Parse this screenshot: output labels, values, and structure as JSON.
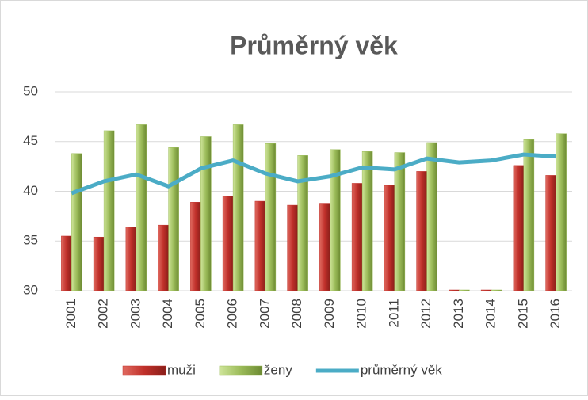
{
  "chart_data": {
    "type": "bar_line",
    "title": "Průměrný věk",
    "categories": [
      "2001",
      "2002",
      "2003",
      "2004",
      "2005",
      "2006",
      "2007",
      "2008",
      "2009",
      "2010",
      "2011",
      "2012",
      "2013",
      "2014",
      "2015",
      "2016"
    ],
    "series": [
      {
        "name": "muži",
        "type": "bar",
        "color": "#c0302a",
        "values": [
          35.5,
          35.4,
          36.4,
          36.6,
          38.9,
          39.5,
          39.0,
          38.6,
          38.8,
          40.8,
          40.6,
          42.0,
          30,
          30,
          42.6,
          41.6
        ]
      },
      {
        "name": "ženy",
        "type": "bar",
        "color": "#9bbb59",
        "values": [
          43.8,
          46.1,
          46.7,
          44.4,
          45.5,
          46.7,
          44.8,
          43.6,
          44.2,
          44.0,
          43.9,
          44.9,
          30,
          30,
          45.2,
          45.8
        ]
      },
      {
        "name": "průměrný věk",
        "type": "line",
        "color": "#4bacc6",
        "values": [
          39.8,
          41.0,
          41.7,
          40.5,
          42.3,
          43.1,
          41.8,
          41.0,
          41.5,
          42.4,
          42.2,
          43.3,
          42.9,
          43.1,
          43.7,
          43.5
        ]
      }
    ],
    "ylim": [
      30,
      50
    ],
    "yticks": [
      30,
      35,
      40,
      45,
      50
    ],
    "grid": true,
    "legend": "bottom"
  }
}
